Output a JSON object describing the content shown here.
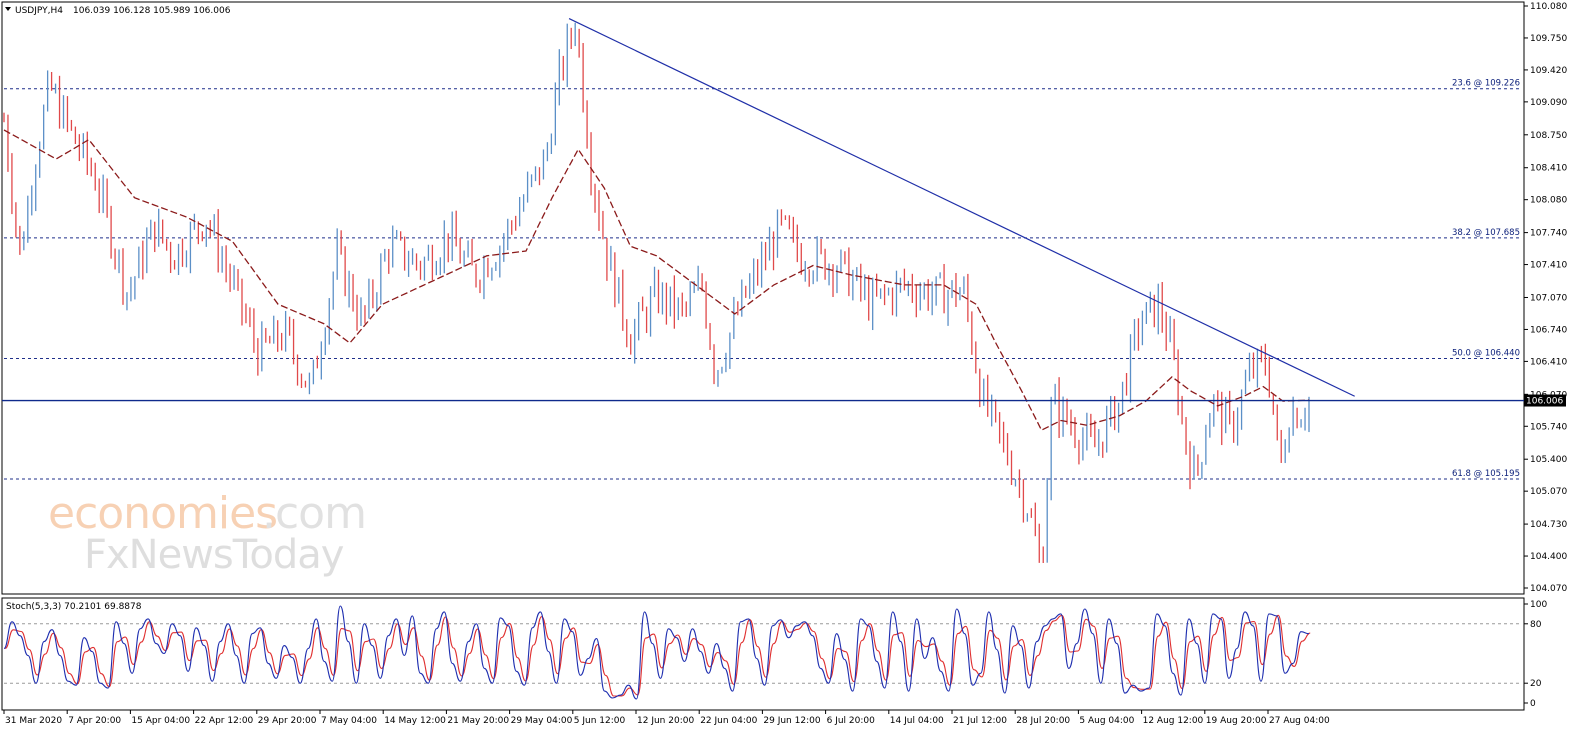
{
  "chart_header": {
    "symbol": "USDJPY,H4",
    "ohlc": "106.039 106.128 105.989 106.006"
  },
  "watermark": {
    "line1_a": "economies",
    "line1_b": ".com",
    "line2": "FxNewsToday"
  },
  "colors": {
    "bull": "#5b8fc7",
    "bear": "#e0494a",
    "ma": "#8b1a1a",
    "trendline": "#1f2fa8",
    "fib": "#1f2f8a",
    "support": "#0f2a8c",
    "stoch_main": "#1f2fb0",
    "stoch_signal": "#e03030",
    "price_tag_bg": "#000000"
  },
  "chart_data": [
    {
      "type": "candlestick",
      "ylim": [
        104.07,
        110.08
      ],
      "ytick_labels": [
        "110.080",
        "109.750",
        "109.420",
        "109.090",
        "108.750",
        "108.410",
        "108.080",
        "107.740",
        "107.410",
        "107.070",
        "106.740",
        "106.410",
        "106.070",
        "105.740",
        "105.400",
        "105.070",
        "104.730",
        "104.400",
        "104.070"
      ],
      "xtick_labels": [
        "31 Mar 2020",
        "7 Apr 20:00",
        "15 Apr 04:00",
        "22 Apr 12:00",
        "29 Apr 20:00",
        "7 May 04:00",
        "14 May 12:00",
        "21 May 20:00",
        "29 May 04:00",
        "5 Jun 12:00",
        "12 Jun 20:00",
        "22 Jun 04:00",
        "29 Jun 12:00",
        "6 Jul 20:00",
        "14 Jul 04:00",
        "21 Jul 12:00",
        "28 Jul 20:00",
        "5 Aug 04:00",
        "12 Aug 12:00",
        "19 Aug 20:00",
        "27 Aug 04:00"
      ],
      "price_path": [
        [
          0,
          108.9
        ],
        [
          0.012,
          107.5
        ],
        [
          0.025,
          108.6
        ],
        [
          0.035,
          109.25
        ],
        [
          0.05,
          108.8
        ],
        [
          0.07,
          108.3
        ],
        [
          0.095,
          107.1
        ],
        [
          0.115,
          107.8
        ],
        [
          0.13,
          107.5
        ],
        [
          0.155,
          107.9
        ],
        [
          0.175,
          107.2
        ],
        [
          0.195,
          106.5
        ],
        [
          0.215,
          106.7
        ],
        [
          0.235,
          106.1
        ],
        [
          0.255,
          107.5
        ],
        [
          0.275,
          106.8
        ],
        [
          0.295,
          107.6
        ],
        [
          0.32,
          107.4
        ],
        [
          0.34,
          107.7
        ],
        [
          0.36,
          107.3
        ],
        [
          0.38,
          107.6
        ],
        [
          0.395,
          108.0
        ],
        [
          0.415,
          108.5
        ],
        [
          0.425,
          109.3
        ],
        [
          0.438,
          109.95
        ],
        [
          0.45,
          108.4
        ],
        [
          0.462,
          107.5
        ],
        [
          0.48,
          106.65
        ],
        [
          0.5,
          107.1
        ],
        [
          0.52,
          106.9
        ],
        [
          0.535,
          107.2
        ],
        [
          0.545,
          106.3
        ],
        [
          0.565,
          107.0
        ],
        [
          0.58,
          107.4
        ],
        [
          0.595,
          107.8
        ],
        [
          0.61,
          107.5
        ],
        [
          0.64,
          107.4
        ],
        [
          0.665,
          107.0
        ],
        [
          0.69,
          107.2
        ],
        [
          0.715,
          107.1
        ],
        [
          0.735,
          107.15
        ],
        [
          0.75,
          106.0
        ],
        [
          0.77,
          105.4
        ],
        [
          0.785,
          104.9
        ],
        [
          0.795,
          104.25
        ],
        [
          0.803,
          106.0
        ],
        [
          0.815,
          105.8
        ],
        [
          0.835,
          105.5
        ],
        [
          0.855,
          106.0
        ],
        [
          0.87,
          106.8
        ],
        [
          0.885,
          107.0
        ],
        [
          0.895,
          106.5
        ],
        [
          0.905,
          105.6
        ],
        [
          0.913,
          105.2
        ],
        [
          0.925,
          106.0
        ],
        [
          0.94,
          105.7
        ],
        [
          0.955,
          106.3
        ],
        [
          0.968,
          106.4
        ],
        [
          0.978,
          105.3
        ],
        [
          0.985,
          105.9
        ],
        [
          0.995,
          105.9
        ],
        [
          1.0,
          106.01
        ]
      ],
      "ma_path": [
        [
          0,
          108.8
        ],
        [
          0.04,
          108.5
        ],
        [
          0.065,
          108.7
        ],
        [
          0.1,
          108.1
        ],
        [
          0.14,
          107.9
        ],
        [
          0.175,
          107.65
        ],
        [
          0.21,
          107.0
        ],
        [
          0.245,
          106.8
        ],
        [
          0.265,
          106.6
        ],
        [
          0.29,
          107.0
        ],
        [
          0.33,
          107.25
        ],
        [
          0.37,
          107.5
        ],
        [
          0.4,
          107.55
        ],
        [
          0.42,
          108.1
        ],
        [
          0.44,
          108.6
        ],
        [
          0.46,
          108.2
        ],
        [
          0.48,
          107.6
        ],
        [
          0.5,
          107.5
        ],
        [
          0.53,
          107.2
        ],
        [
          0.56,
          106.9
        ],
        [
          0.59,
          107.2
        ],
        [
          0.62,
          107.4
        ],
        [
          0.65,
          107.3
        ],
        [
          0.69,
          107.2
        ],
        [
          0.72,
          107.2
        ],
        [
          0.745,
          107.0
        ],
        [
          0.76,
          106.6
        ],
        [
          0.78,
          106.1
        ],
        [
          0.795,
          105.7
        ],
        [
          0.81,
          105.8
        ],
        [
          0.83,
          105.75
        ],
        [
          0.855,
          105.85
        ],
        [
          0.875,
          106.0
        ],
        [
          0.895,
          106.25
        ],
        [
          0.91,
          106.1
        ],
        [
          0.93,
          105.95
        ],
        [
          0.95,
          106.05
        ],
        [
          0.965,
          106.15
        ],
        [
          0.98,
          106.0
        ],
        [
          1.0,
          106.01
        ]
      ],
      "last_price": 106.006,
      "trendline": {
        "from": [
          0.433,
          109.95
        ],
        "to": [
          1.035,
          106.05
        ]
      },
      "horizontal_line": 106.006,
      "fib_levels": [
        {
          "value": 109.226,
          "label": "23.6 @ 109.226"
        },
        {
          "value": 107.685,
          "label": "38.2 @ 107.685"
        },
        {
          "value": 106.44,
          "label": "50.0 @ 106.440"
        },
        {
          "value": 105.195,
          "label": "61.8 @ 105.195"
        }
      ]
    },
    {
      "type": "line",
      "title": "Stoch(5,3,3) 70.2101 69.8878",
      "ylim": [
        0,
        100
      ],
      "ytick_labels": [
        "100",
        "80",
        "20",
        "0"
      ],
      "level_lines": [
        80,
        20
      ],
      "series": [
        {
          "values": [
            55,
            82,
            68,
            48,
            20,
            62,
            74,
            48,
            22,
            18,
            66,
            52,
            20,
            15,
            82,
            60,
            30,
            75,
            85,
            60,
            50,
            80,
            68,
            32,
            76,
            58,
            22,
            62,
            80,
            48,
            20,
            70,
            76,
            40,
            25,
            58,
            46,
            20,
            55,
            85,
            42,
            22,
            98,
            62,
            20,
            80,
            58,
            25,
            68,
            85,
            48,
            88,
            30,
            20,
            75,
            92,
            40,
            22,
            62,
            80,
            35,
            20,
            86,
            78,
            32,
            18,
            76,
            92,
            52,
            20,
            85,
            72,
            28,
            45,
            65,
            12,
            5,
            8,
            18,
            4,
            92,
            60,
            25,
            75,
            66,
            42,
            75,
            52,
            30,
            60,
            35,
            12,
            82,
            85,
            45,
            18,
            78,
            84,
            66,
            78,
            82,
            68,
            35,
            20,
            70,
            44,
            12,
            85,
            78,
            42,
            15,
            92,
            62,
            12,
            85,
            45,
            66,
            32,
            12,
            95,
            70,
            18,
            30,
            92,
            54,
            10,
            78,
            58,
            15,
            62,
            78,
            85,
            90,
            35,
            60,
            95,
            70,
            20,
            85,
            60,
            10,
            18,
            12,
            15,
            90,
            78,
            30,
            8,
            85,
            60,
            20,
            90,
            85,
            25,
            55,
            92,
            78,
            22,
            90,
            88,
            30,
            40,
            72,
            70
          ]
        }
      ]
    }
  ]
}
